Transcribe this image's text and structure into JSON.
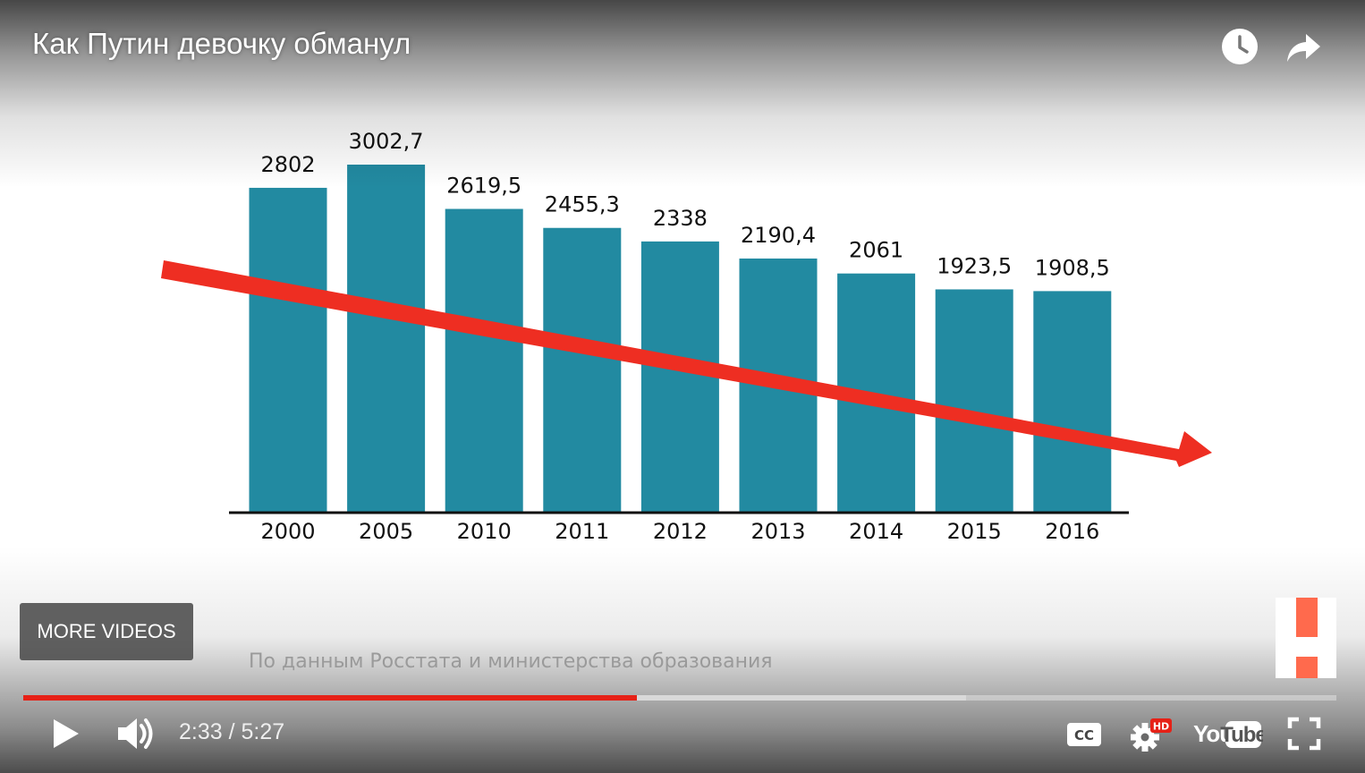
{
  "video": {
    "title": "Как Путин девочку обманул",
    "current_time": "2:33",
    "duration": "5:27",
    "time_display": "2:33 / 5:27",
    "progress_played_pct": 46.7,
    "progress_buffered_pct": 71.8
  },
  "overlay": {
    "more_videos_label": "MORE VIDEOS",
    "source_note": "По данным Росстата и министерства образования"
  },
  "controls": {
    "watch_later_icon": "clock-icon",
    "share_icon": "share-arrow-icon",
    "play_icon": "play-icon",
    "volume_icon": "speaker-icon",
    "cc_icon": "cc-icon",
    "settings_icon": "gear-icon",
    "settings_badge": "HD",
    "youtube_logo_text": "YouTube",
    "fullscreen_icon": "fullscreen-icon"
  },
  "colors": {
    "bar": "#228aa1",
    "trend_arrow": "#ee2e22",
    "progress_played": "#e62117",
    "brand_accent": "#ff6a4d"
  },
  "chart_data": {
    "type": "bar",
    "categories": [
      "2000",
      "2005",
      "2010",
      "2011",
      "2012",
      "2013",
      "2014",
      "2015",
      "2016"
    ],
    "values": [
      2802,
      3002.7,
      2619.5,
      2455.3,
      2338,
      2190.4,
      2061,
      1923.5,
      1908.5
    ],
    "value_labels": [
      "2802",
      "3002,7",
      "2619,5",
      "2455,3",
      "2338",
      "2190,4",
      "2061",
      "1923,5",
      "1908,5"
    ],
    "title": "",
    "xlabel": "",
    "ylabel": "",
    "trend": "decreasing",
    "grid": false,
    "legend": "none"
  }
}
